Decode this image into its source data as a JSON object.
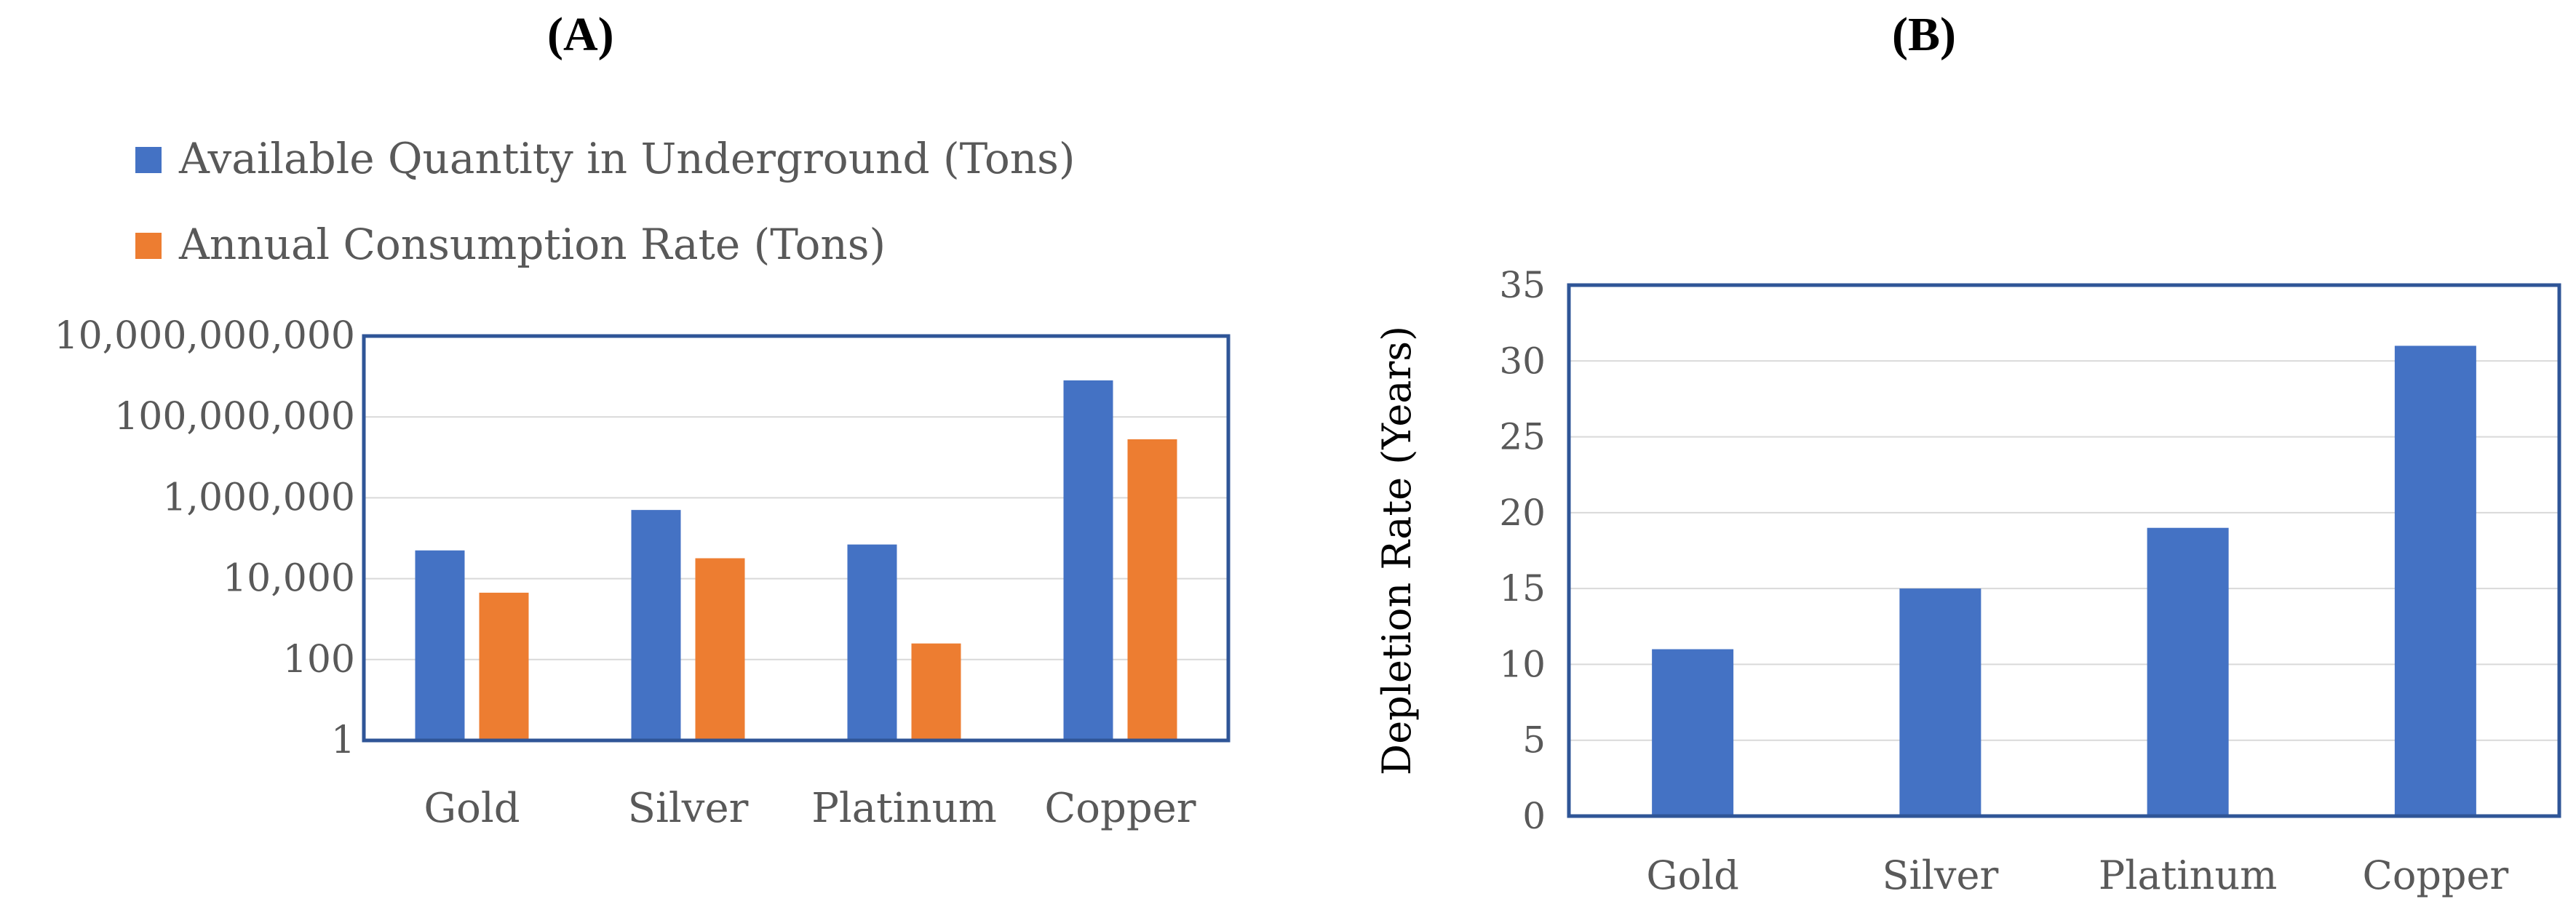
{
  "chart_data": [
    {
      "panel_label": "(A)",
      "type": "bar",
      "categories": [
        "Gold",
        "Silver",
        "Platinum",
        "Copper"
      ],
      "series": [
        {
          "name": "Available Quantity in Underground (Tons)",
          "color": "#4472C4",
          "values": [
            50000,
            500000,
            70000,
            800000000
          ]
        },
        {
          "name": "Annual Consumption Rate (Tons)",
          "color": "#ED7D31",
          "values": [
            4500,
            32000,
            250,
            28000000
          ]
        }
      ],
      "yscale": "log",
      "ylim": [
        1,
        10000000000
      ],
      "yticks": [
        1,
        100,
        10000,
        1000000,
        100000000,
        10000000000
      ],
      "ytick_labels": [
        "1",
        "100",
        "10,000",
        "1,000,000",
        "100,000,000",
        "10,000,000,000"
      ],
      "xlabel": "",
      "ylabel": "",
      "grid": true,
      "legend_position": "top-left"
    },
    {
      "panel_label": "(B)",
      "type": "bar",
      "categories": [
        "Gold",
        "Silver",
        "Platinum",
        "Copper"
      ],
      "series": [
        {
          "color": "#4472C4",
          "values": [
            11,
            15,
            19,
            31
          ]
        }
      ],
      "ylim": [
        0,
        35
      ],
      "yticks": [
        0,
        5,
        10,
        15,
        20,
        25,
        30,
        35
      ],
      "ytick_labels": [
        "0",
        "5",
        "10",
        "15",
        "20",
        "25",
        "30",
        "35"
      ],
      "xlabel": "",
      "ylabel": "Depletion Rate (Years)",
      "grid": true
    }
  ]
}
